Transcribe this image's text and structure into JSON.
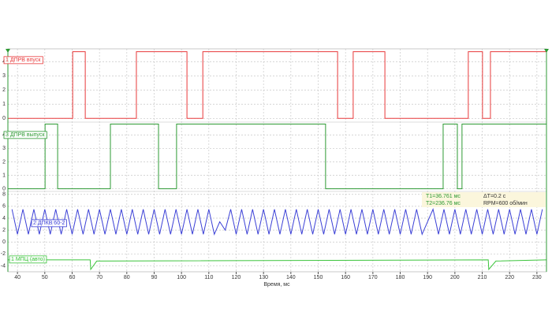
{
  "chart_data": {
    "type": "line",
    "xlabel": "Время, мс",
    "xlim": [
      36.5,
      233.5
    ],
    "xticks": [
      40,
      50,
      60,
      70,
      80,
      90,
      100,
      110,
      120,
      130,
      140,
      150,
      160,
      170,
      180,
      190,
      200,
      210,
      220,
      230
    ],
    "grid": true,
    "annotations": [
      "T1=36.761 мс",
      "ΔT=0.2 с",
      "T2=236.76 мс",
      "RPM=600 об/мин"
    ],
    "panels": [
      {
        "ylim": [
          -0.15,
          4.9
        ],
        "yticks": [
          0,
          1,
          2,
          3,
          4
        ],
        "series": [
          {
            "name": "1 ДПРВ впуск",
            "color": "#e8393a",
            "x": [
              36.5,
              60.2,
              60.2,
              64.8,
              64.8,
              83.5,
              83.5,
              102.0,
              102.0,
              107.8,
              107.8,
              157.1,
              157.1,
              162.8,
              162.8,
              174.4,
              174.4,
              204.9,
              204.9,
              210.1,
              210.1,
              213.0,
              213.0,
              233.5
            ],
            "values": [
              0,
              0,
              4.7,
              4.7,
              0,
              0,
              4.7,
              4.7,
              0,
              0,
              4.7,
              4.7,
              0,
              0,
              4.7,
              4.7,
              0,
              0,
              4.7,
              4.7,
              0,
              0,
              4.7,
              4.7
            ]
          }
        ]
      },
      {
        "ylim": [
          -0.2,
          4.95
        ],
        "yticks": [
          0,
          1,
          2,
          3,
          4
        ],
        "series": [
          {
            "name": "3 ДПРВ выпуск",
            "color": "#2e9a34",
            "x": [
              36.5,
              50.1,
              50.1,
              54.7,
              54.7,
              74.0,
              74.0,
              91.6,
              91.6,
              98.2,
              98.2,
              152.7,
              152.7,
              195.7,
              195.7,
              200.9,
              200.9,
              202.6,
              202.6,
              233.5
            ],
            "values": [
              0,
              0,
              4.8,
              4.8,
              0,
              0,
              4.8,
              4.8,
              0,
              0,
              4.8,
              4.8,
              0,
              0,
              4.8,
              4.8,
              0,
              0,
              4.8,
              4.8
            ]
          }
        ]
      },
      {
        "ylim": [
          -5,
          8.5
        ],
        "yticks": [
          8,
          6,
          4,
          2,
          0,
          -2,
          -4
        ],
        "series": [
          {
            "name": "2 ДПКВ 60-2",
            "color": "#3a3fd6",
            "x": [
              38,
              40,
              42,
              44,
              46,
              48,
              50,
              52,
              54,
              56,
              58,
              60,
              62,
              64,
              66,
              68,
              70,
              72,
              74,
              76,
              78,
              80,
              82,
              84,
              86,
              88,
              90,
              92,
              94,
              96,
              98,
              100,
              102,
              104,
              106,
              108,
              110,
              112,
              114,
              116,
              118,
              120,
              122,
              124,
              126,
              128,
              130,
              132,
              134,
              136,
              138,
              140,
              142,
              144,
              146,
              148,
              150,
              152,
              154,
              156,
              158,
              160,
              162,
              164,
              166,
              168,
              170,
              172,
              174,
              176,
              178,
              180,
              182,
              184,
              186,
              188,
              190,
              192,
              194,
              196,
              198,
              200,
              202,
              204,
              206,
              208,
              210,
              212,
              214,
              216,
              218,
              220,
              222,
              224,
              226,
              228,
              230,
              232
            ],
            "values": [
              5.5,
              1.3,
              5.5,
              1.3,
              5.5,
              1.3,
              5.5,
              1.3,
              5.5,
              1.3,
              5.5,
              1.3,
              5.5,
              1.3,
              5.5,
              1.3,
              5.5,
              1.3,
              5.5,
              1.3,
              5.5,
              1.3,
              5.5,
              1.3,
              5.5,
              1.3,
              5.5,
              1.3,
              5.5,
              1.3,
              5.5,
              1.3,
              5.5,
              1.3,
              5.5,
              1.3,
              5.5,
              1.3,
              3.4,
              2,
              5.5,
              1.3,
              5.5,
              1.3,
              5.5,
              1.3,
              5.5,
              1.3,
              5.5,
              1.3,
              5.5,
              1.3,
              5.5,
              1.3,
              5.5,
              1.3,
              5.5,
              1.3,
              5.5,
              1.3,
              5.5,
              1.3,
              5.5,
              1.3,
              5.5,
              1.3,
              5.5,
              1.3,
              5.5,
              1.3,
              5.5,
              1.3,
              5.5,
              1.3,
              5.5,
              1.3,
              3.4,
              5.5,
              1.3,
              5.5,
              1.3,
              5.5,
              1.3,
              5.5,
              1.3,
              5.5,
              1.3,
              5.5,
              1.3,
              5.5,
              1.3,
              5.5,
              1.3,
              5.5,
              1.3,
              5.5,
              1.3,
              5.5
            ]
          },
          {
            "name": "1 МПЦ (авто)",
            "color": "#3cc43c",
            "x": [
              36.5,
              66.6,
              66.8,
              69,
              212.2,
              212.4,
              215,
              233.5
            ],
            "values": [
              -3,
              -3,
              -4.6,
              -3.2,
              -3,
              -4.6,
              -3.2,
              -3
            ]
          }
        ]
      }
    ]
  }
}
